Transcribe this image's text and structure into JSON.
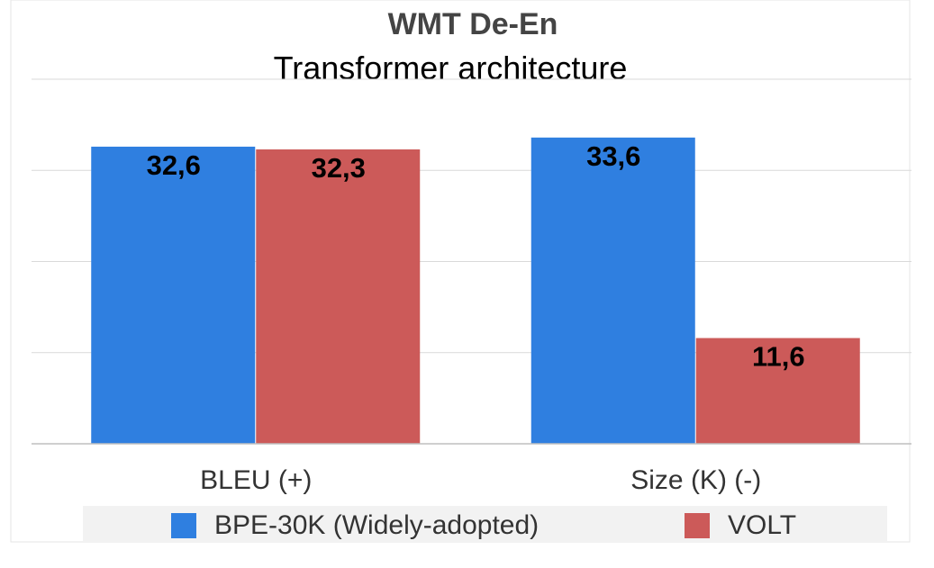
{
  "chart_data": {
    "type": "bar",
    "title": "WMT De-En",
    "subtitle": "Transformer architecture",
    "xlabel": "",
    "ylabel": "",
    "categories": [
      "BLEU (+)",
      "Size (K) (-)"
    ],
    "series": [
      {
        "name": "BPE-30K (Widely-adopted)",
        "values": [
          "32,6",
          "33,6"
        ],
        "numeric": [
          32.6,
          33.6
        ],
        "color": "#2f7fe0"
      },
      {
        "name": "VOLT",
        "values": [
          "32,3",
          "11,6"
        ],
        "numeric": [
          32.3,
          11.6
        ],
        "color": "#cc5a59"
      }
    ],
    "ylim": [
      0,
      40
    ],
    "grid": true,
    "legend": "bottom",
    "colors": {
      "bpe": "#2f7fe0",
      "volt": "#cc5a59",
      "grid": "#d9d9d9",
      "legend_bg": "#f2f2f2"
    }
  }
}
